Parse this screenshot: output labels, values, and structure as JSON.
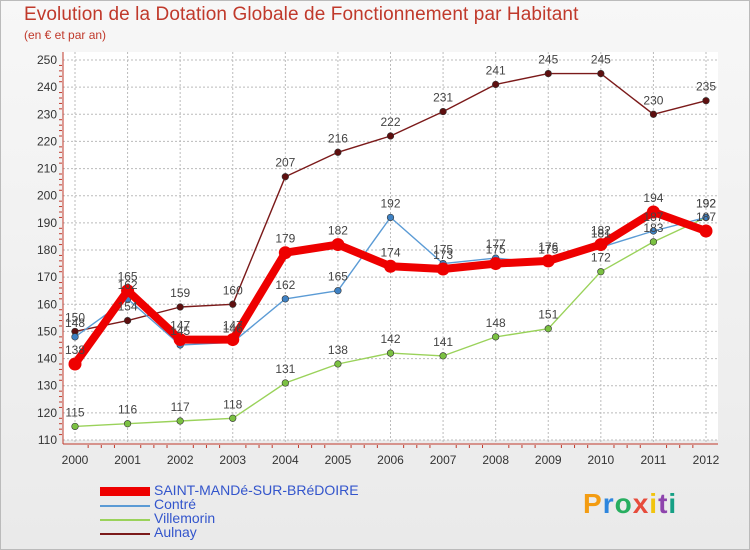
{
  "header": {
    "title": "Evolution de la Dotation Globale de Fonctionnement par Habitant",
    "subtitle": "(en € et par an)"
  },
  "brand": {
    "letters": [
      "P",
      "r",
      "o",
      "x",
      "i",
      "t",
      "i"
    ]
  },
  "colors": {
    "title": "#c0392b",
    "grid": "#bbbbbb",
    "axis": "#c0392b",
    "legend_text": "#3355cc",
    "brand": [
      "#f39c12",
      "#2e86de",
      "#27ae60",
      "#e74c3c",
      "#f1c40f",
      "#8e44ad",
      "#16a085"
    ]
  },
  "chart_data": {
    "type": "line",
    "title": "Evolution de la Dotation Globale de Fonctionnement par Habitant",
    "subtitle": "(en € et par an)",
    "xlabel": "",
    "ylabel": "",
    "ylim": [
      110,
      250
    ],
    "yticks": [
      110,
      120,
      130,
      140,
      150,
      160,
      170,
      180,
      190,
      200,
      210,
      220,
      230,
      240,
      250
    ],
    "categories": [
      "2000",
      "2001",
      "2002",
      "2003",
      "2004",
      "2005",
      "2006",
      "2007",
      "2008",
      "2009",
      "2010",
      "2011",
      "2012"
    ],
    "grid": true,
    "legend_position": "bottom-left",
    "series": [
      {
        "name": "Aulnay",
        "color": "#7b1a1a",
        "marker": "#5e0f0f",
        "values": [
          150,
          154,
          159,
          160,
          207,
          216,
          222,
          231,
          241,
          245,
          245,
          230,
          235
        ],
        "labels": [
          "150",
          "154",
          "159",
          "160",
          "207",
          "216",
          "222",
          "231",
          "241",
          "245",
          "245",
          "230",
          "235"
        ]
      },
      {
        "name": "Villemorin",
        "color": "#9ad25a",
        "marker": "#7bc142",
        "values": [
          115,
          116,
          117,
          118,
          131,
          138,
          142,
          141,
          148,
          151,
          172,
          183,
          192
        ],
        "labels": [
          "115",
          "116",
          "117",
          "118",
          "131",
          "138",
          "142",
          "141",
          "148",
          "151",
          "172",
          "183",
          "192"
        ]
      },
      {
        "name": "Contré",
        "color": "#5b9bd5",
        "marker": "#3f82c4",
        "values": [
          148,
          162,
          145,
          146,
          162,
          165,
          192,
          175,
          177,
          175,
          181,
          187,
          192
        ],
        "labels": [
          "148",
          "162",
          "145",
          "146",
          "162",
          "165",
          "192",
          "175",
          "177",
          "175",
          "181",
          "187",
          "192"
        ]
      },
      {
        "name": "SAINT-MANDé-SUR-BRéDOIRE",
        "color": "#ee0000",
        "marker": "#ee0000",
        "values": [
          138,
          165,
          147,
          147,
          179,
          182,
          174,
          173,
          175,
          176,
          182,
          194,
          187
        ],
        "labels": [
          "138",
          "165",
          "147",
          "147",
          "179",
          "182",
          "174",
          "173",
          "175",
          "176",
          "182",
          "194",
          "187"
        ]
      }
    ]
  }
}
